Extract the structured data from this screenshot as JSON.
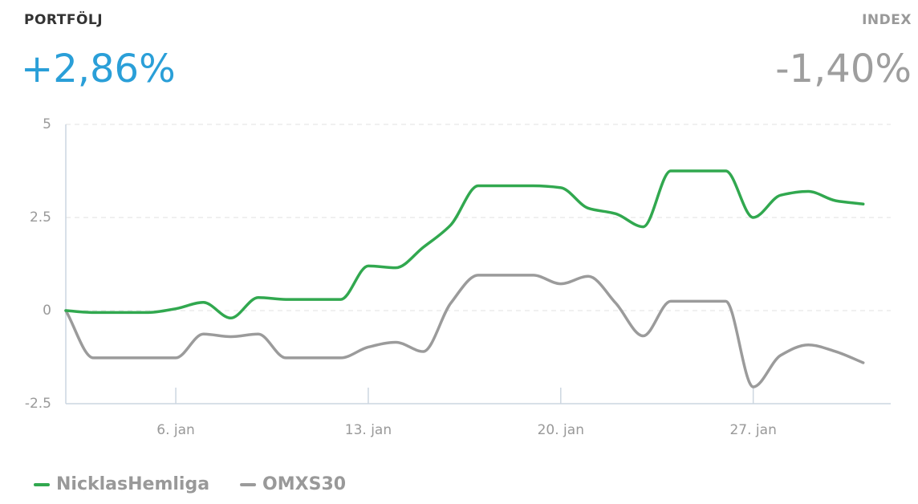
{
  "header": {
    "portfolio_label": "PORTFÖLJ",
    "portfolio_value": "+2,86%",
    "index_label": "INDEX",
    "index_value": "-1,40%"
  },
  "chart_data": {
    "type": "line",
    "x": [
      2,
      3,
      4,
      5,
      6,
      7,
      8,
      9,
      10,
      11,
      12,
      13,
      14,
      15,
      16,
      17,
      18,
      19,
      20,
      21,
      22,
      23,
      24,
      25,
      26,
      27,
      28,
      29,
      30,
      31
    ],
    "xlim": [
      2,
      32
    ],
    "xticks": [
      {
        "value": 6,
        "label": "6. jan"
      },
      {
        "value": 13,
        "label": "13. jan"
      },
      {
        "value": 20,
        "label": "20. jan"
      },
      {
        "value": 27,
        "label": "27. jan"
      }
    ],
    "ylim": [
      -2.5,
      5
    ],
    "yticks": [
      5,
      2.5,
      0,
      -2.5
    ],
    "grid": true,
    "legend": "bottom-left",
    "series": [
      {
        "name": "NicklasHemliga",
        "color": "#31a84f",
        "values": [
          0,
          -0.05,
          -0.05,
          -0.05,
          0.05,
          0.22,
          -0.2,
          0.35,
          0.3,
          0.3,
          0.3,
          1.2,
          1.15,
          1.7,
          2.3,
          3.35,
          3.35,
          3.35,
          3.3,
          2.75,
          2.6,
          2.25,
          3.75,
          3.75,
          3.75,
          2.5,
          3.1,
          3.2,
          2.95,
          2.86
        ]
      },
      {
        "name": "OMXS30",
        "color": "#9b9b9b",
        "values": [
          0,
          -1.27,
          -1.27,
          -1.27,
          -1.27,
          -0.63,
          -0.7,
          -0.63,
          -1.27,
          -1.27,
          -1.27,
          -0.98,
          -0.85,
          -1.1,
          0.2,
          0.95,
          0.95,
          0.95,
          0.72,
          0.92,
          0.2,
          -0.68,
          0.25,
          0.25,
          0.25,
          -2.05,
          -1.2,
          -0.92,
          -1.1,
          -1.4
        ]
      }
    ]
  }
}
